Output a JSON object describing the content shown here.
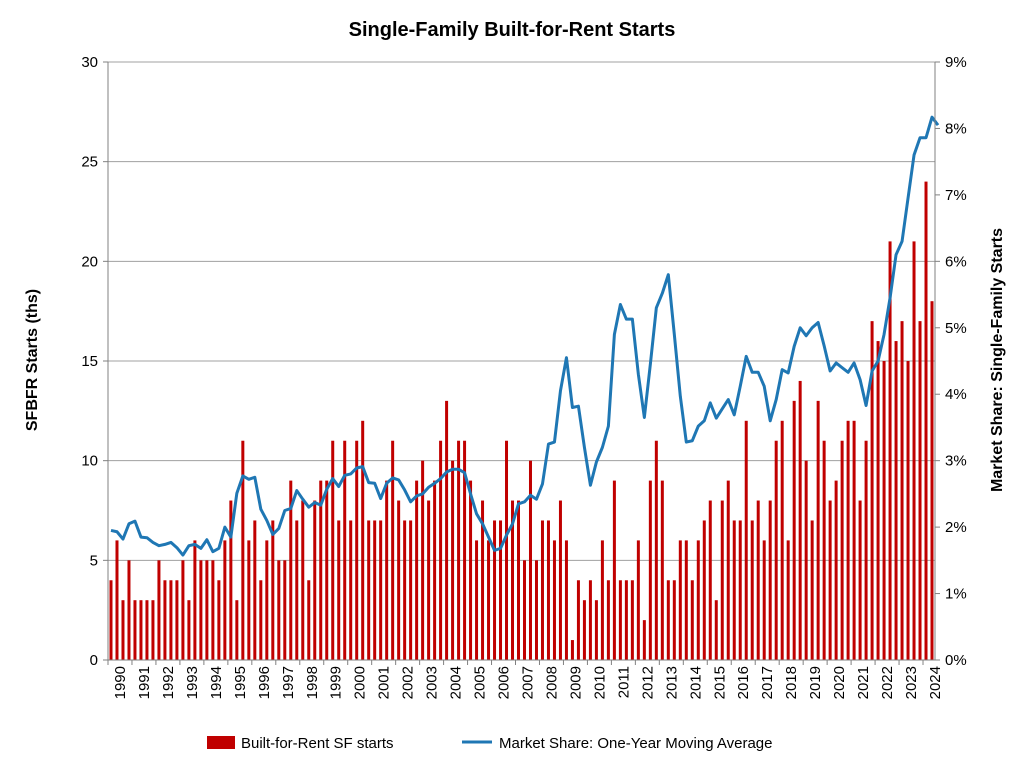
{
  "chart_data": {
    "type": "bar",
    "title": "Single-Family Built-for-Rent Starts",
    "ylabel": "SFBFR Starts (ths)",
    "y2label": "Market Share: Single-Family Starts",
    "ylim": [
      0,
      30
    ],
    "y2lim": [
      0,
      9
    ],
    "yticks": [
      "0",
      "5",
      "10",
      "15",
      "20",
      "25",
      "30"
    ],
    "y2ticks": [
      "0%",
      "1%",
      "2%",
      "3%",
      "4%",
      "5%",
      "6%",
      "7%",
      "8%",
      "9%"
    ],
    "x_start": "1990Q1",
    "year_labels": [
      "1990",
      "1991",
      "1992",
      "1993",
      "1994",
      "1995",
      "1996",
      "1997",
      "1998",
      "1999",
      "2000",
      "2001",
      "2002",
      "2003",
      "2004",
      "2005",
      "2006",
      "2007",
      "2008",
      "2009",
      "2010",
      "2011",
      "2012",
      "2013",
      "2014",
      "2015",
      "2016",
      "2017",
      "2018",
      "2019",
      "2020",
      "2021",
      "2022",
      "2023",
      "2024"
    ],
    "grid": true,
    "legend": "bottom",
    "series": [
      {
        "name": "Built-for-Rent SF starts",
        "kind": "bar",
        "color": "#c00000",
        "values": [
          4,
          6,
          3,
          5,
          3,
          3,
          3,
          3,
          5,
          4,
          4,
          4,
          5,
          3,
          6,
          5,
          5,
          5,
          4,
          6,
          8,
          3,
          11,
          6,
          7,
          4,
          6,
          7,
          5,
          5,
          9,
          7,
          8,
          4,
          8,
          9,
          9,
          11,
          7,
          11,
          7,
          11,
          12,
          7,
          7,
          7,
          9,
          11,
          8,
          7,
          7,
          9,
          10,
          8,
          9,
          11,
          13,
          10,
          11,
          11,
          9,
          6,
          8,
          6,
          7,
          7,
          11,
          8,
          8,
          5,
          10,
          5,
          7,
          7,
          6,
          8,
          6,
          1,
          4,
          3,
          4,
          3,
          6,
          4,
          9,
          4,
          4,
          4,
          6,
          2,
          9,
          11,
          9,
          4,
          4,
          6,
          6,
          4,
          6,
          7,
          8,
          3,
          8,
          9,
          7,
          7,
          12,
          7,
          8,
          6,
          8,
          11,
          12,
          6,
          13,
          14,
          10,
          7,
          13,
          11,
          8,
          9,
          11,
          12,
          12,
          8,
          11,
          17,
          16,
          15,
          21,
          16,
          17,
          15,
          21,
          17,
          24,
          18
        ]
      },
      {
        "name": "Market Share: One-Year Moving Average",
        "kind": "line",
        "color": "#1f77b4",
        "values": [
          1.95,
          1.93,
          1.82,
          2.05,
          2.09,
          1.85,
          1.84,
          1.77,
          1.72,
          1.74,
          1.77,
          1.69,
          1.58,
          1.72,
          1.74,
          1.68,
          1.81,
          1.63,
          1.68,
          2.0,
          1.85,
          2.51,
          2.77,
          2.72,
          2.75,
          2.27,
          2.1,
          1.89,
          1.98,
          2.25,
          2.28,
          2.55,
          2.42,
          2.3,
          2.37,
          2.33,
          2.57,
          2.73,
          2.61,
          2.78,
          2.8,
          2.89,
          2.91,
          2.67,
          2.66,
          2.43,
          2.66,
          2.74,
          2.71,
          2.56,
          2.38,
          2.47,
          2.5,
          2.6,
          2.66,
          2.73,
          2.83,
          2.87,
          2.87,
          2.82,
          2.5,
          2.2,
          2.05,
          1.85,
          1.65,
          1.68,
          1.88,
          2.05,
          2.35,
          2.38,
          2.48,
          2.42,
          2.65,
          3.25,
          3.28,
          4.05,
          4.55,
          3.8,
          3.82,
          3.2,
          2.63,
          2.98,
          3.2,
          3.52,
          4.9,
          5.35,
          5.13,
          5.13,
          4.3,
          3.65,
          4.45,
          5.3,
          5.52,
          5.8,
          4.9,
          3.97,
          3.28,
          3.3,
          3.52,
          3.6,
          3.87,
          3.64,
          3.78,
          3.92,
          3.69,
          4.12,
          4.57,
          4.33,
          4.33,
          4.12,
          3.6,
          3.92,
          4.37,
          4.32,
          4.72,
          5.0,
          4.88,
          5.0,
          5.08,
          4.73,
          4.35,
          4.47,
          4.4,
          4.33,
          4.47,
          4.22,
          3.83,
          4.35,
          4.5,
          4.9,
          5.45,
          6.1,
          6.3,
          6.95,
          7.6,
          7.86,
          7.86,
          8.17,
          8.05
        ]
      }
    ]
  }
}
